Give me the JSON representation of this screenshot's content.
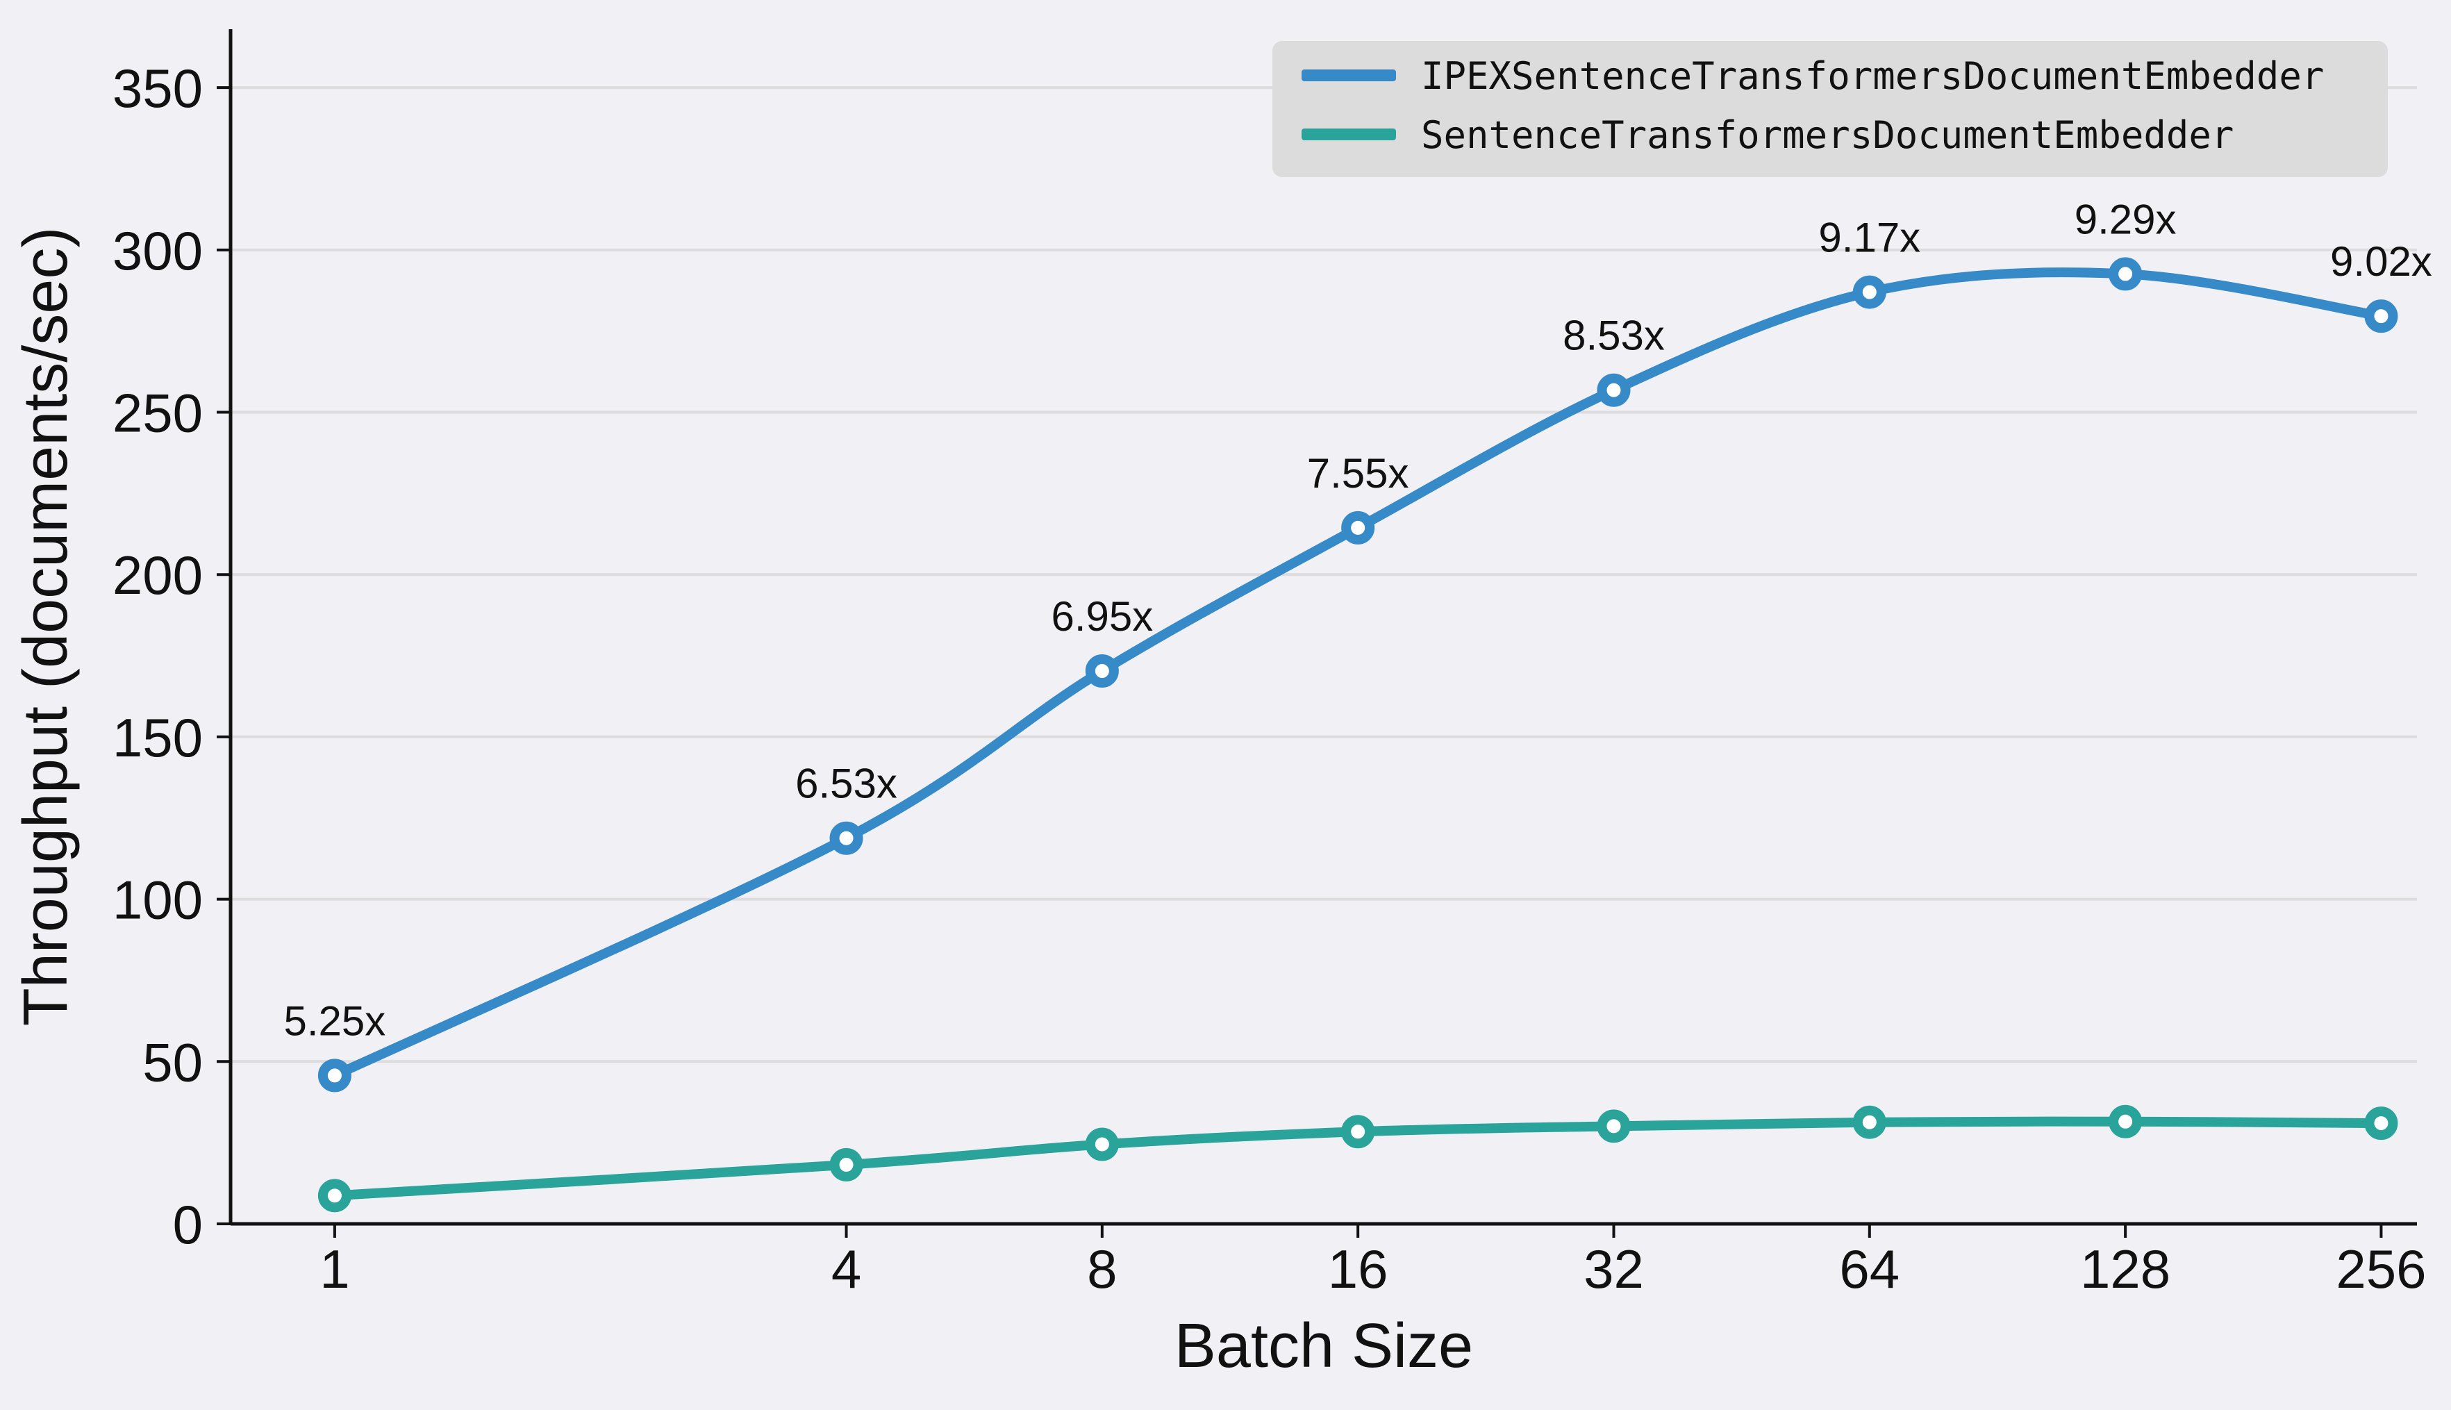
{
  "figure": {
    "background": "#f1f1f5",
    "grid_color": "#dcdcdf",
    "text_color": "#111111",
    "legend_background": "#dcdcdd"
  },
  "chart_data": {
    "type": "line",
    "title": "",
    "xlabel": "Batch Size",
    "ylabel": "Throughput (documents/sec)",
    "x_scale": "log2",
    "grid": "horizontal",
    "legend_position": "upper right",
    "categories": [
      1,
      4,
      8,
      16,
      32,
      64,
      128,
      256
    ],
    "xticklabels": [
      "1",
      "4",
      "8",
      "16",
      "32",
      "64",
      "128",
      "256"
    ],
    "yticks": [
      0,
      50,
      100,
      150,
      200,
      250,
      300,
      350
    ],
    "ylim": [
      0,
      368
    ],
    "series": [
      {
        "name": "IPEXSentenceTransformersDocumentEmbedder",
        "color": "#378ac8",
        "values": [
          45.7,
          118.8,
          170.3,
          214.4,
          256.8,
          287.0,
          292.6,
          279.6
        ]
      },
      {
        "name": "SentenceTransformersDocumentEmbedder",
        "color": "#2aa49a",
        "values": [
          8.7,
          18.2,
          24.5,
          28.4,
          30.1,
          31.3,
          31.5,
          31.0
        ]
      }
    ],
    "speedup_labels": [
      {
        "batch": 1,
        "text": "5.25x"
      },
      {
        "batch": 4,
        "text": "6.53x"
      },
      {
        "batch": 8,
        "text": "6.95x"
      },
      {
        "batch": 16,
        "text": "7.55x"
      },
      {
        "batch": 32,
        "text": "8.53x"
      },
      {
        "batch": 64,
        "text": "9.17x"
      },
      {
        "batch": 128,
        "text": "9.29x"
      },
      {
        "batch": 256,
        "text": "9.02x"
      }
    ]
  }
}
